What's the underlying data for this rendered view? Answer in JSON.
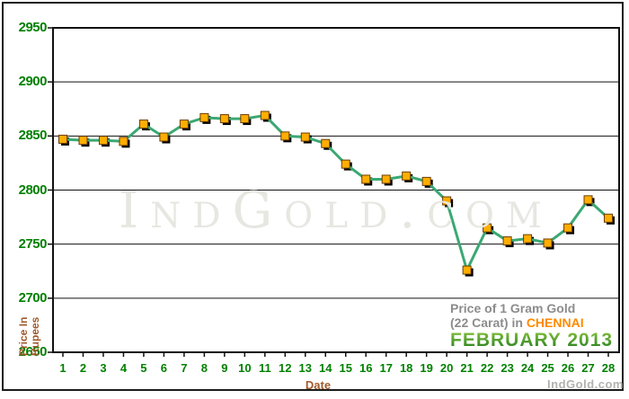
{
  "watermark": "IndGold.com",
  "brand": "IndGold.com",
  "title": {
    "line1": "Price of 1 Gram Gold",
    "line2_prefix": "(22 Carat) in ",
    "line2_highlight": "CHENNAI",
    "line3": "FEBRUARY 2013"
  },
  "axes": {
    "x_label": "Date",
    "y_label_line1": "Price In",
    "y_label_line2": "Rupees"
  },
  "colors": {
    "line": "#3BA873",
    "marker_fill": "#FFAE00",
    "marker_stroke": "#6b3c00",
    "marker_shadow": "#000000",
    "tick_label": "#008000",
    "axis_title": "#a05a2b",
    "subtitle_gray": "#8c8c8c",
    "city_orange": "#ff8a00",
    "month_green_top": "#8cc63f",
    "month_green_bottom": "#1e7a1e",
    "watermark_gray": "#e7e7e2",
    "brand_gray": "#b3b1ae"
  },
  "chart_data": {
    "type": "line",
    "title": "Price of 1 Gram Gold (22 Carat) in CHENNAI - FEBRUARY 2013",
    "xlabel": "Date",
    "ylabel": "Price In Rupees",
    "categories": [
      1,
      2,
      3,
      4,
      5,
      6,
      7,
      8,
      9,
      10,
      11,
      12,
      13,
      14,
      15,
      16,
      17,
      18,
      19,
      20,
      21,
      22,
      23,
      24,
      25,
      26,
      27,
      28
    ],
    "values": [
      2847,
      2846,
      2846,
      2845,
      2861,
      2849,
      2861,
      2867,
      2866,
      2866,
      2869,
      2850,
      2849,
      2843,
      2824,
      2810,
      2810,
      2813,
      2808,
      2790,
      2726,
      2765,
      2753,
      2755,
      2751,
      2765,
      2791,
      2774
    ],
    "ylim": [
      2650,
      2950
    ],
    "yticks": [
      2950,
      2900,
      2850,
      2800,
      2750,
      2700,
      2650
    ],
    "grid": "horizontal",
    "legend": false,
    "marker": "square"
  }
}
